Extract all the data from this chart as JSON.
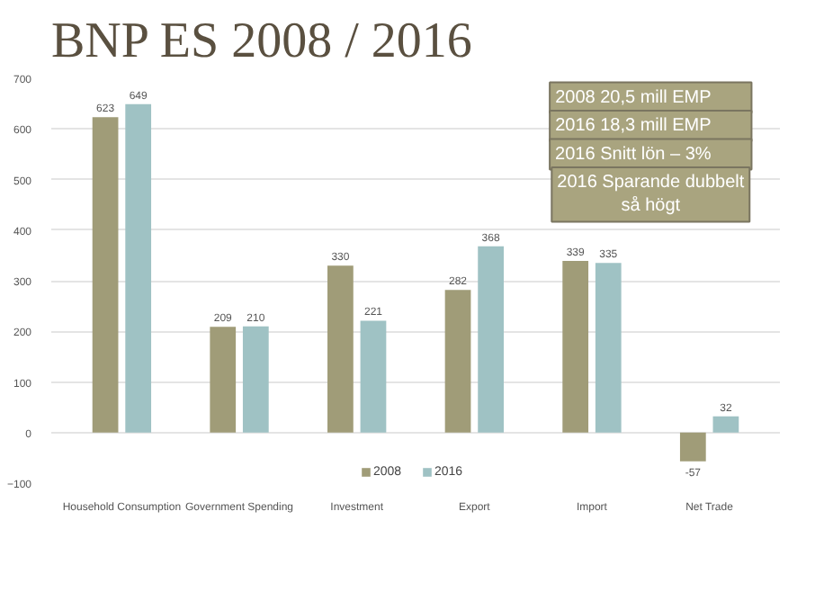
{
  "chart_data": {
    "type": "bar",
    "title": "BNP ES 2008 / 2016",
    "categories": [
      "Household Consumption",
      "Government Spending",
      "Investment",
      "Export",
      "Import",
      "Net Trade"
    ],
    "series": [
      {
        "name": "2008",
        "color": "#a09c78",
        "values": [
          623,
          209,
          330,
          282,
          339,
          -57
        ]
      },
      {
        "name": "2016",
        "color": "#9fc2c4",
        "values": [
          649,
          210,
          221,
          368,
          335,
          32
        ]
      }
    ],
    "ylim": [
      -100,
      700
    ],
    "yticks": [
      -100,
      0,
      100,
      200,
      300,
      400,
      500,
      600,
      700
    ],
    "grid": "y",
    "legend": "bottom",
    "data_labels": true,
    "annotations": [
      "2008        20,5 mill EMP",
      "2016        18,3 mill EMP",
      "2016        Snitt lön – 3%",
      "2016 Sparande dubbelt\nså högt"
    ]
  }
}
